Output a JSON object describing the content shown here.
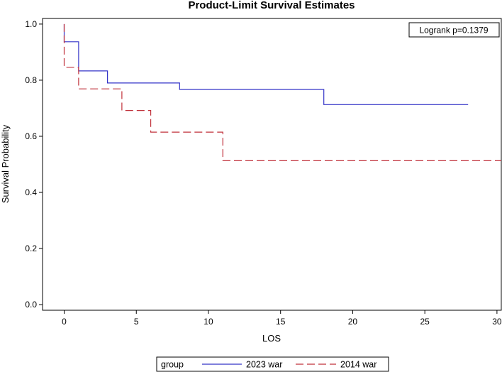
{
  "chart_data": {
    "type": "line",
    "title": "Product-Limit Survival Estimates",
    "xlabel": "LOS",
    "ylabel": "Survival Probability",
    "xlim": [
      -1.5,
      30.3
    ],
    "ylim": [
      -0.02,
      1.02
    ],
    "xticks": [
      0,
      5,
      10,
      15,
      20,
      25,
      30
    ],
    "yticks": [
      0.0,
      0.2,
      0.4,
      0.6,
      0.8,
      1.0
    ],
    "yticklabels": [
      "0.0",
      "0.2",
      "0.4",
      "0.6",
      "0.8",
      "1.0"
    ],
    "annotation": "Logrank p=0.1379",
    "legend": {
      "title": "group",
      "placement": "bottom"
    },
    "series": [
      {
        "name": "2023 war",
        "color": "#3535c8",
        "style": "solid",
        "steps": [
          [
            0,
            1.0
          ],
          [
            0,
            0.937
          ],
          [
            1,
            0.833
          ],
          [
            3,
            0.79
          ],
          [
            8,
            0.767
          ],
          [
            18,
            0.713
          ]
        ],
        "x_end": 28
      },
      {
        "name": "2014 war",
        "color": "#c0303a",
        "style": "dashed",
        "steps": [
          [
            0,
            1.0
          ],
          [
            0,
            0.846
          ],
          [
            1,
            0.769
          ],
          [
            4,
            0.692
          ],
          [
            6,
            0.615
          ],
          [
            11,
            0.513
          ]
        ],
        "x_end": 30.3
      }
    ]
  }
}
